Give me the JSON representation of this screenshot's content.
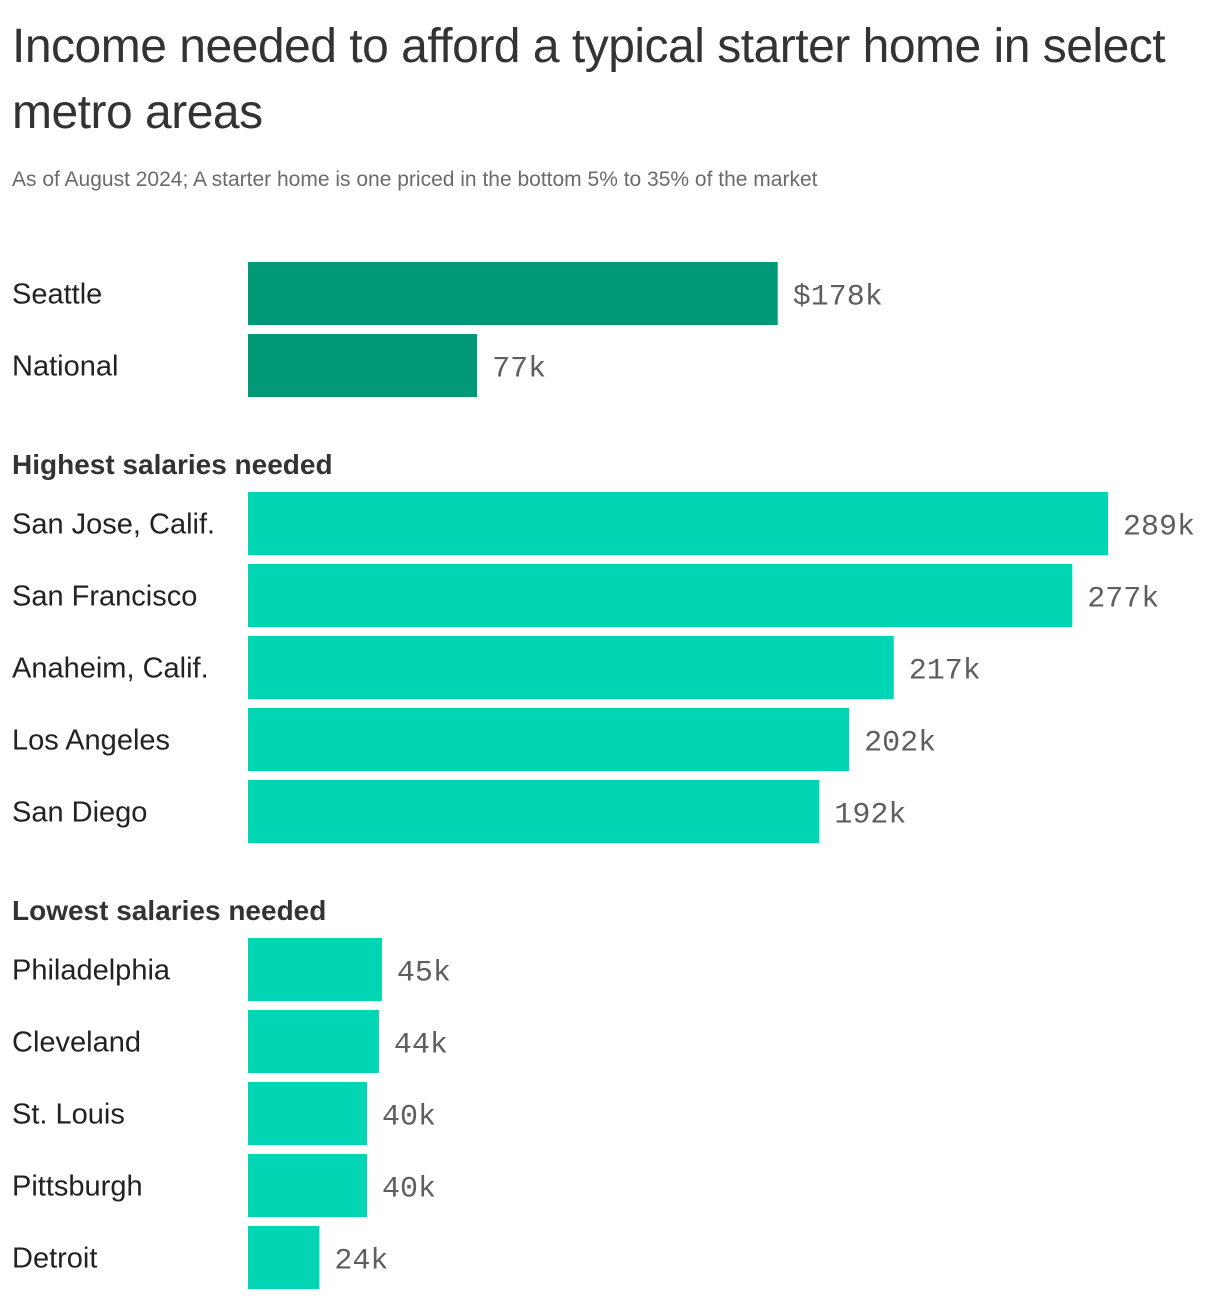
{
  "header": {
    "title": "Income needed to afford a typical starter home in select metro areas",
    "subtitle": "As of August 2024; A starter home is one priced in the bottom 5% to 35% of the market"
  },
  "colors": {
    "featured": "#009977",
    "default": "#00d6b4"
  },
  "chart_data": {
    "type": "bar",
    "orientation": "horizontal",
    "title": "Income needed to afford a typical starter home in select metro areas",
    "subtitle": "As of August 2024; A starter home is one priced in the bottom 5% to 35% of the market",
    "xlim": [
      0,
      289
    ],
    "groups": [
      {
        "label": "",
        "color": "#009977",
        "rows": [
          {
            "category": "Seattle",
            "value": 178,
            "label": "$178k"
          },
          {
            "category": "National",
            "value": 77,
            "label": "77k"
          }
        ]
      },
      {
        "label": "Highest salaries needed",
        "color": "#00d6b4",
        "rows": [
          {
            "category": "San Jose, Calif.",
            "value": 289,
            "label": "289k"
          },
          {
            "category": "San Francisco",
            "value": 277,
            "label": "277k"
          },
          {
            "category": "Anaheim, Calif.",
            "value": 217,
            "label": "217k"
          },
          {
            "category": "Los Angeles",
            "value": 202,
            "label": "202k"
          },
          {
            "category": "San Diego",
            "value": 192,
            "label": "192k"
          }
        ]
      },
      {
        "label": "Lowest salaries needed",
        "color": "#00d6b4",
        "rows": [
          {
            "category": "Philadelphia",
            "value": 45,
            "label": "45k"
          },
          {
            "category": "Cleveland",
            "value": 44,
            "label": "44k"
          },
          {
            "category": "St. Louis",
            "value": 40,
            "label": "40k"
          },
          {
            "category": "Pittsburgh",
            "value": 40,
            "label": "40k"
          },
          {
            "category": "Detroit",
            "value": 24,
            "label": "24k"
          }
        ]
      }
    ]
  }
}
